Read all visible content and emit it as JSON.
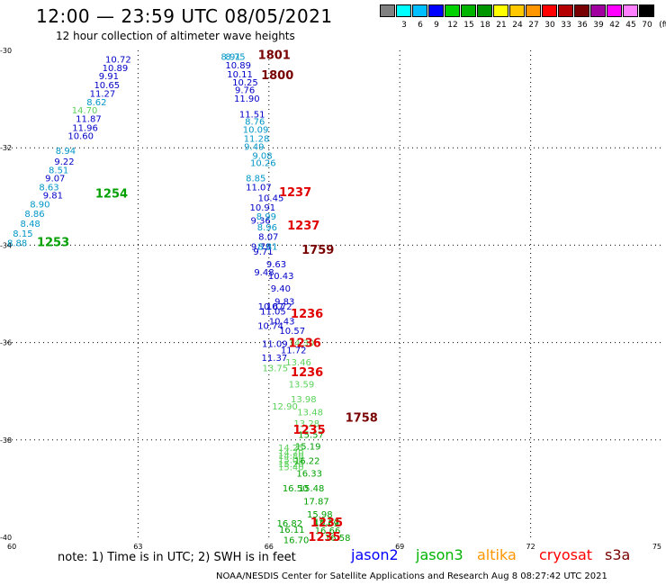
{
  "header": {
    "title": "12:00 — 23:59 UTC 08/05/2021",
    "subtitle": "12 hour collection of altimeter wave heights"
  },
  "legend": {
    "unit": "(ft)",
    "colors": [
      "#808080",
      "#00ffff",
      "#00bfff",
      "#0000ff",
      "#00d200",
      "#00b400",
      "#009600",
      "#ffff00",
      "#ffc800",
      "#ff9600",
      "#ff0000",
      "#b40000",
      "#780000",
      "#a000a0",
      "#ff00ff",
      "#ff80ff",
      "#000000"
    ],
    "labels": [
      "3",
      "6",
      "9",
      "12",
      "15",
      "18",
      "21",
      "24",
      "27",
      "30",
      "33",
      "36",
      "39",
      "42",
      "45",
      "70"
    ]
  },
  "chart_data": {
    "type": "scatter",
    "title": "12:00 — 23:59 UTC 08/05/2021",
    "subtitle": "12 hour collection of altimeter wave heights",
    "xlim": [
      60,
      75
    ],
    "ylim": [
      -40,
      -30
    ],
    "xticks": [
      60,
      63,
      66,
      69,
      72,
      75
    ],
    "yticks": [
      -30,
      -32,
      -34,
      -36,
      -38,
      -40
    ],
    "x_tick_labels": [
      "60",
      "63",
      "66",
      "69",
      "72",
      "75"
    ],
    "y_tick_labels": [
      "-30",
      "-32",
      "-34",
      "-36",
      "-38",
      "-40"
    ],
    "grid": "dotted",
    "tracks": [
      {
        "mission": "jason2",
        "color": "#0000c8",
        "points": [
          {
            "x": 62.25,
            "y": -30.18,
            "v": "10.72"
          },
          {
            "x": 62.18,
            "y": -30.35,
            "v": "10.89"
          },
          {
            "x": 62.1,
            "y": -30.52,
            "v": "9.91"
          },
          {
            "x": 61.99,
            "y": -30.7,
            "v": "10.65"
          },
          {
            "x": 61.89,
            "y": -30.88,
            "v": "11.27"
          },
          {
            "x": 61.57,
            "y": -31.4,
            "v": "11.87"
          },
          {
            "x": 61.49,
            "y": -31.58,
            "v": "11.96"
          },
          {
            "x": 61.39,
            "y": -31.75,
            "v": "10.60"
          },
          {
            "x": 61.08,
            "y": -32.27,
            "v": "9.22"
          },
          {
            "x": 60.87,
            "y": -32.62,
            "v": "9.07"
          },
          {
            "x": 60.82,
            "y": -32.97,
            "v": "9.81"
          },
          {
            "x": 65.0,
            "y": -30.3,
            "v": "10.89"
          },
          {
            "x": 65.04,
            "y": -30.48,
            "v": "10.11"
          },
          {
            "x": 65.16,
            "y": -30.65,
            "v": "10.25"
          },
          {
            "x": 65.22,
            "y": -30.8,
            "v": "9.76"
          },
          {
            "x": 65.2,
            "y": -30.98,
            "v": "11.90"
          },
          {
            "x": 65.32,
            "y": -31.3,
            "v": "11.51"
          },
          {
            "x": 65.47,
            "y": -32.8,
            "v": "11.07"
          },
          {
            "x": 65.75,
            "y": -33.02,
            "v": "10.45"
          },
          {
            "x": 65.56,
            "y": -33.22,
            "v": "10.91"
          },
          {
            "x": 65.58,
            "y": -33.48,
            "v": "9.36"
          },
          {
            "x": 65.76,
            "y": -33.82,
            "v": "8.07"
          },
          {
            "x": 65.59,
            "y": -34.02,
            "v": "9.79"
          },
          {
            "x": 65.64,
            "y": -34.12,
            "v": "9.71"
          },
          {
            "x": 65.94,
            "y": -34.38,
            "v": "9.63"
          },
          {
            "x": 65.66,
            "y": -34.55,
            "v": "9.48"
          },
          {
            "x": 65.98,
            "y": -34.62,
            "v": "10.43"
          },
          {
            "x": 66.04,
            "y": -34.88,
            "v": "9.40"
          },
          {
            "x": 66.13,
            "y": -35.15,
            "v": "9.83"
          },
          {
            "x": 65.75,
            "y": -35.25,
            "v": "10.67"
          },
          {
            "x": 65.94,
            "y": -35.25,
            "v": "10.72"
          },
          {
            "x": 65.8,
            "y": -35.35,
            "v": "11.05"
          },
          {
            "x": 66.0,
            "y": -35.55,
            "v": "10.43"
          },
          {
            "x": 65.74,
            "y": -35.65,
            "v": "10.74"
          },
          {
            "x": 66.24,
            "y": -35.75,
            "v": "10.57"
          },
          {
            "x": 65.84,
            "y": -36.02,
            "v": "11.09"
          },
          {
            "x": 66.27,
            "y": -36.15,
            "v": "11.72"
          },
          {
            "x": 65.83,
            "y": -36.3,
            "v": "11.37"
          }
        ]
      },
      {
        "mission": "jason2-light",
        "color": "#0096c8",
        "points": [
          {
            "x": 61.82,
            "y": -31.05,
            "v": "8.62"
          },
          {
            "x": 61.11,
            "y": -32.05,
            "v": "8.94"
          },
          {
            "x": 60.95,
            "y": -32.45,
            "v": "8.51"
          },
          {
            "x": 60.73,
            "y": -32.8,
            "v": "8.63"
          },
          {
            "x": 60.52,
            "y": -33.15,
            "v": "8.90"
          },
          {
            "x": 60.4,
            "y": -33.35,
            "v": "8.86"
          },
          {
            "x": 60.3,
            "y": -33.55,
            "v": "8.48"
          },
          {
            "x": 60.13,
            "y": -33.75,
            "v": "8.15"
          },
          {
            "x": 60.0,
            "y": -33.95,
            "v": "8.88"
          },
          {
            "x": 64.9,
            "y": -30.12,
            "v": "8.91"
          },
          {
            "x": 65.0,
            "y": -30.12,
            "v": "8.75"
          },
          {
            "x": 65.45,
            "y": -31.45,
            "v": "8.76"
          },
          {
            "x": 65.4,
            "y": -31.62,
            "v": "10.09"
          },
          {
            "x": 65.42,
            "y": -31.8,
            "v": "11.28"
          },
          {
            "x": 65.43,
            "y": -31.97,
            "v": "9.49"
          },
          {
            "x": 65.62,
            "y": -32.15,
            "v": "9.08"
          },
          {
            "x": 65.57,
            "y": -32.3,
            "v": "10.26"
          },
          {
            "x": 65.47,
            "y": -32.62,
            "v": "8.85"
          },
          {
            "x": 65.71,
            "y": -33.4,
            "v": "8.99"
          },
          {
            "x": 65.73,
            "y": -33.62,
            "v": "8.96"
          },
          {
            "x": 65.74,
            "y": -34.02,
            "v": "8.81"
          }
        ]
      },
      {
        "mission": "jason3",
        "color": "#5ad25a",
        "points": [
          {
            "x": 61.48,
            "y": -31.22,
            "v": "14.70"
          },
          {
            "x": 65.85,
            "y": -36.52,
            "v": "13.75"
          },
          {
            "x": 66.38,
            "y": -36.4,
            "v": "13.46"
          },
          {
            "x": 66.45,
            "y": -36.85,
            "v": "13.59"
          },
          {
            "x": 66.5,
            "y": -37.15,
            "v": "13.98"
          },
          {
            "x": 66.07,
            "y": -37.3,
            "v": "12.90"
          },
          {
            "x": 66.65,
            "y": -37.42,
            "v": "13.48"
          },
          {
            "x": 66.57,
            "y": -37.65,
            "v": "13.28"
          },
          {
            "x": 66.21,
            "y": -38.15,
            "v": "14.25"
          },
          {
            "x": 66.45,
            "y": -36.0,
            "v": "14.30"
          },
          {
            "x": 66.21,
            "y": -38.25,
            "v": "14.70"
          },
          {
            "x": 66.21,
            "y": -38.32,
            "v": "14.80"
          },
          {
            "x": 66.21,
            "y": -38.4,
            "v": "15.00"
          },
          {
            "x": 66.21,
            "y": -38.48,
            "v": "15.20"
          },
          {
            "x": 66.21,
            "y": -38.55,
            "v": "15.40"
          }
        ]
      },
      {
        "mission": "jason3-dark",
        "color": "#00a000",
        "points": [
          {
            "x": 62.02,
            "y": -32.95,
            "v": "1254"
          },
          {
            "x": 60.68,
            "y": -33.95,
            "v": "1253"
          },
          {
            "x": 66.67,
            "y": -37.88,
            "v": "15.57"
          },
          {
            "x": 66.6,
            "y": -38.12,
            "v": "15.19"
          },
          {
            "x": 66.58,
            "y": -38.42,
            "v": "16.22"
          },
          {
            "x": 66.63,
            "y": -38.68,
            "v": "16.33"
          },
          {
            "x": 66.68,
            "y": -38.98,
            "v": "15.48"
          },
          {
            "x": 66.79,
            "y": -39.25,
            "v": "17.87"
          },
          {
            "x": 66.87,
            "y": -39.52,
            "v": "15.98"
          },
          {
            "x": 66.31,
            "y": -38.98,
            "v": "16.50"
          },
          {
            "x": 67.02,
            "y": -39.7,
            "v": "17.69"
          },
          {
            "x": 67.05,
            "y": -39.85,
            "v": "16.66"
          },
          {
            "x": 67.03,
            "y": -39.68,
            "v": "16.82"
          },
          {
            "x": 66.18,
            "y": -39.7,
            "v": "16.82"
          },
          {
            "x": 66.23,
            "y": -39.83,
            "v": "16.11"
          },
          {
            "x": 67.28,
            "y": -40.0,
            "v": "16.58"
          },
          {
            "x": 66.33,
            "y": -40.05,
            "v": "16.70"
          }
        ]
      },
      {
        "mission": "cryosat",
        "color": "#e00000",
        "points": [
          {
            "x": 66.23,
            "y": -32.92,
            "v": "1237"
          },
          {
            "x": 66.42,
            "y": -33.6,
            "v": "1237"
          },
          {
            "x": 66.5,
            "y": -35.42,
            "v": "1236"
          },
          {
            "x": 66.45,
            "y": -36.02,
            "v": "1236"
          },
          {
            "x": 66.5,
            "y": -36.62,
            "v": "1236"
          },
          {
            "x": 66.55,
            "y": -37.8,
            "v": "1235"
          },
          {
            "x": 66.95,
            "y": -39.7,
            "v": "1235"
          },
          {
            "x": 66.9,
            "y": -40.0,
            "v": "1235"
          }
        ]
      },
      {
        "mission": "s3a",
        "color": "#780000",
        "points": [
          {
            "x": 65.75,
            "y": -30.1,
            "v": "1801"
          },
          {
            "x": 65.82,
            "y": -30.52,
            "v": "1800"
          },
          {
            "x": 66.75,
            "y": -34.1,
            "v": "1759"
          },
          {
            "x": 67.75,
            "y": -37.55,
            "v": "1758"
          }
        ]
      }
    ]
  },
  "missions": [
    {
      "name": "jason2",
      "color": "#0000ff"
    },
    {
      "name": "jason3",
      "color": "#00b400"
    },
    {
      "name": "altika",
      "color": "#ff9600"
    },
    {
      "name": "cryosat",
      "color": "#ff0000"
    },
    {
      "name": "s3a",
      "color": "#780000"
    }
  ],
  "note": "note:  1) Time is in UTC;  2) SWH is in feet",
  "footer": "NOAA/NESDIS Center for Satellite Applications and Research    Aug  8 08:27:42 UTC 2021"
}
